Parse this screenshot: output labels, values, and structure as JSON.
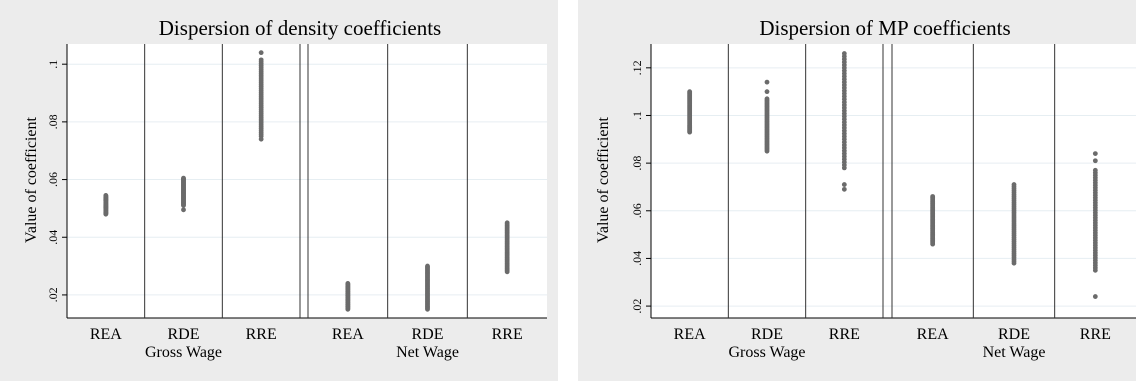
{
  "chart_data": [
    {
      "type": "scatter",
      "title": "Dispersion of density coefficients",
      "ylabel": "Value of coefficient",
      "ylim": [
        0.012,
        0.107
      ],
      "yticks": [
        ".02",
        ".04",
        ".06",
        ".08",
        ".1"
      ],
      "ytick_values": [
        0.02,
        0.04,
        0.06,
        0.08,
        0.1
      ],
      "categories": [
        "REA",
        "RDE",
        "RRE",
        "REA",
        "RDE",
        "RRE"
      ],
      "groups": [
        {
          "label": "Gross Wage",
          "categories": [
            "REA",
            "RDE",
            "RRE"
          ]
        },
        {
          "label": "Net Wage",
          "categories": [
            "REA",
            "RDE",
            "RRE"
          ]
        }
      ],
      "grid": true,
      "legend": "none",
      "marker_color": "#6b6b6b",
      "series": [
        {
          "category": "REA",
          "group": "Gross Wage",
          "min": 0.048,
          "max": 0.0545,
          "outliers": []
        },
        {
          "category": "RDE",
          "group": "Gross Wage",
          "min": 0.051,
          "max": 0.0605,
          "outliers": [
            0.0495
          ]
        },
        {
          "category": "RRE",
          "group": "Gross Wage",
          "min": 0.075,
          "max": 0.1015,
          "outliers": [
            0.074,
            0.104
          ]
        },
        {
          "category": "REA",
          "group": "Net Wage",
          "min": 0.015,
          "max": 0.024,
          "outliers": []
        },
        {
          "category": "RDE",
          "group": "Net Wage",
          "min": 0.015,
          "max": 0.03,
          "outliers": []
        },
        {
          "category": "RRE",
          "group": "Net Wage",
          "min": 0.028,
          "max": 0.045,
          "outliers": []
        }
      ]
    },
    {
      "type": "scatter",
      "title": "Dispersion of MP coefficients",
      "ylabel": "Value of coefficient",
      "ylim": [
        0.015,
        0.13
      ],
      "yticks": [
        ".02",
        ".04",
        ".06",
        ".08",
        ".1",
        ".12"
      ],
      "ytick_values": [
        0.02,
        0.04,
        0.06,
        0.08,
        0.1,
        0.12
      ],
      "categories": [
        "REA",
        "RDE",
        "RRE",
        "REA",
        "RDE",
        "RRE"
      ],
      "groups": [
        {
          "label": "Gross Wage",
          "categories": [
            "REA",
            "RDE",
            "RRE"
          ]
        },
        {
          "label": "Net Wage",
          "categories": [
            "REA",
            "RDE",
            "RRE"
          ]
        }
      ],
      "grid": true,
      "legend": "none",
      "marker_color": "#6b6b6b",
      "series": [
        {
          "category": "REA",
          "group": "Gross Wage",
          "min": 0.093,
          "max": 0.11,
          "outliers": []
        },
        {
          "category": "RDE",
          "group": "Gross Wage",
          "min": 0.085,
          "max": 0.107,
          "outliers": [
            0.11,
            0.114
          ]
        },
        {
          "category": "RRE",
          "group": "Gross Wage",
          "min": 0.078,
          "max": 0.126,
          "outliers": [
            0.069,
            0.071
          ]
        },
        {
          "category": "REA",
          "group": "Net Wage",
          "min": 0.046,
          "max": 0.066,
          "outliers": []
        },
        {
          "category": "RDE",
          "group": "Net Wage",
          "min": 0.038,
          "max": 0.071,
          "outliers": []
        },
        {
          "category": "RRE",
          "group": "Net Wage",
          "min": 0.035,
          "max": 0.077,
          "outliers": [
            0.024,
            0.081,
            0.084
          ]
        }
      ]
    }
  ]
}
